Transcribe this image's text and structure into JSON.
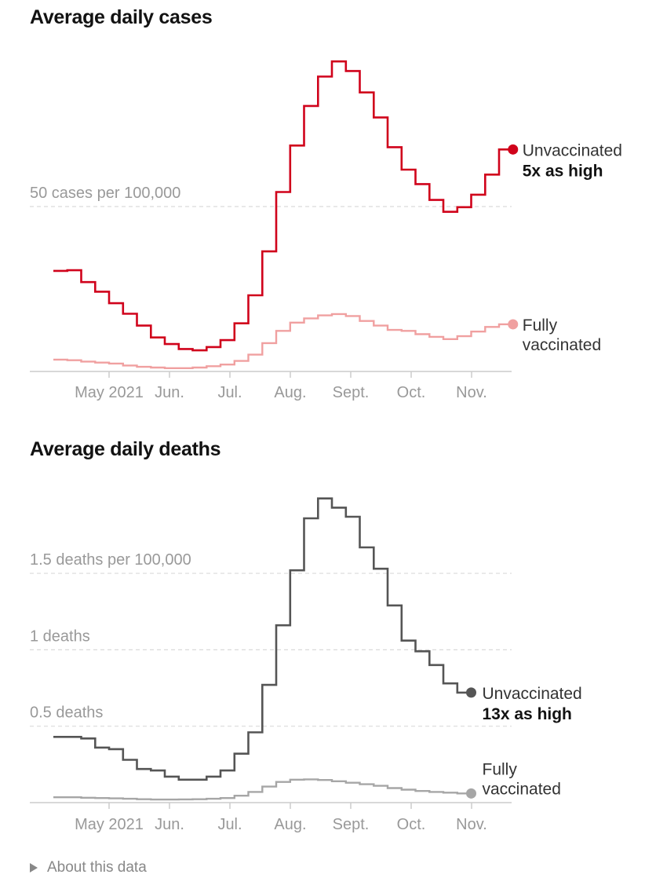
{
  "about_link": {
    "label": "About this data",
    "icon": "triangle-right-icon"
  },
  "chart_data": [
    {
      "type": "line",
      "step": true,
      "title": "Average daily cases",
      "y_reference_labels": [
        {
          "value": 50,
          "label": "50 cases per 100,000"
        }
      ],
      "ylim": [
        0,
        95
      ],
      "x_ticks": [
        {
          "label": "May 2021",
          "month_index": 0
        },
        {
          "label": "Jun.",
          "month_index": 1
        },
        {
          "label": "Jul.",
          "month_index": 2
        },
        {
          "label": "Aug.",
          "month_index": 3
        },
        {
          "label": "Sept.",
          "month_index": 4
        },
        {
          "label": "Oct.",
          "month_index": 5
        },
        {
          "label": "Nov.",
          "month_index": 6
        }
      ],
      "x_start_month_index": -0.9,
      "series": [
        {
          "name": "Unvaccinated",
          "color": "#d0021b",
          "annotation": "5x as high",
          "values": [
            30.5,
            30.7,
            27.1,
            24.2,
            20.7,
            17.5,
            13.9,
            10.3,
            8.3,
            6.8,
            6.4,
            7.4,
            9.5,
            14.6,
            23.1,
            36.4,
            54.4,
            68.5,
            80.5,
            89.4,
            94.0,
            91.1,
            84.6,
            77.0,
            68.0,
            61.2,
            56.8,
            52.0,
            48.4,
            49.8,
            53.6,
            59.7,
            67.3
          ]
        },
        {
          "name": "Fully vaccinated",
          "color": "#f0a0a0",
          "annotation": "",
          "values": [
            3.6,
            3.4,
            3.0,
            2.7,
            2.4,
            1.8,
            1.4,
            1.2,
            1.0,
            1.0,
            1.2,
            1.6,
            2.1,
            3.2,
            5.1,
            8.6,
            12.3,
            14.8,
            16.1,
            17.0,
            17.4,
            16.8,
            15.3,
            13.9,
            12.6,
            12.3,
            11.3,
            10.5,
            9.8,
            10.7,
            12.1,
            13.5,
            14.3
          ]
        }
      ]
    },
    {
      "type": "line",
      "step": true,
      "title": "Average daily deaths",
      "y_reference_labels": [
        {
          "value": 0.5,
          "label": "0.5 deaths"
        },
        {
          "value": 1,
          "label": "1 deaths"
        },
        {
          "value": 1.5,
          "label": "1.5 deaths per 100,000"
        }
      ],
      "ylim": [
        0,
        2.05
      ],
      "x_ticks": [
        {
          "label": "May 2021",
          "month_index": 0
        },
        {
          "label": "Jun.",
          "month_index": 1
        },
        {
          "label": "Jul.",
          "month_index": 2
        },
        {
          "label": "Aug.",
          "month_index": 3
        },
        {
          "label": "Sept.",
          "month_index": 4
        },
        {
          "label": "Oct.",
          "month_index": 5
        },
        {
          "label": "Nov.",
          "month_index": 6
        }
      ],
      "x_start_month_index": -0.9,
      "series": [
        {
          "name": "Unvaccinated",
          "color": "#555555",
          "annotation": "13x as high",
          "values": [
            0.43,
            0.43,
            0.42,
            0.36,
            0.35,
            0.28,
            0.22,
            0.21,
            0.17,
            0.15,
            0.15,
            0.17,
            0.21,
            0.32,
            0.46,
            0.77,
            1.16,
            1.52,
            1.86,
            1.99,
            1.93,
            1.87,
            1.67,
            1.53,
            1.29,
            1.06,
            0.99,
            0.9,
            0.78,
            0.72
          ]
        },
        {
          "name": "Fully vaccinated",
          "color": "#a6a6a6",
          "annotation": "",
          "values": [
            0.035,
            0.035,
            0.032,
            0.03,
            0.028,
            0.025,
            0.022,
            0.02,
            0.02,
            0.021,
            0.022,
            0.025,
            0.03,
            0.045,
            0.07,
            0.105,
            0.135,
            0.15,
            0.152,
            0.148,
            0.14,
            0.13,
            0.12,
            0.11,
            0.095,
            0.085,
            0.076,
            0.07,
            0.065,
            0.06
          ]
        }
      ]
    }
  ]
}
